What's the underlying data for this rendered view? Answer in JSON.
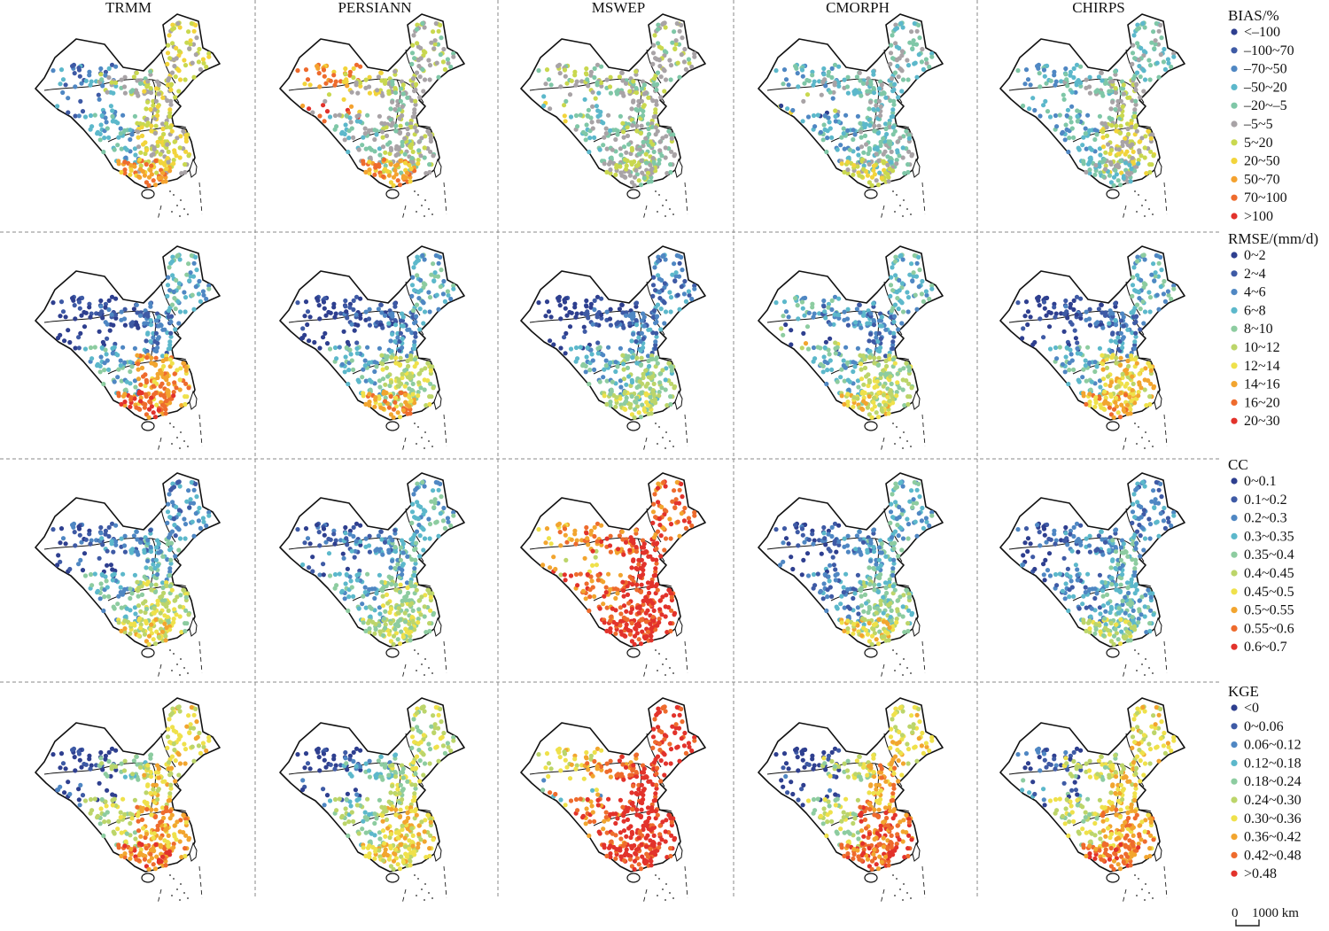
{
  "columns": [
    {
      "name": "TRMM"
    },
    {
      "name": "PERSIANN"
    },
    {
      "name": "MSWEP"
    },
    {
      "name": "CMORPH"
    },
    {
      "name": "CHIRPS"
    }
  ],
  "metrics": [
    {
      "key": "bias",
      "title": "BIAS/%",
      "classes": [
        {
          "label": "<–100",
          "color": "#2e3f8f"
        },
        {
          "label": "–100~70",
          "color": "#3e5aa5"
        },
        {
          "label": "–70~50",
          "color": "#4f87c3"
        },
        {
          "label": "–50~20",
          "color": "#5cb8cb"
        },
        {
          "label": "–20~–5",
          "color": "#7fc7a7"
        },
        {
          "label": "–5~5",
          "color": "#a8a3a6"
        },
        {
          "label": "5~20",
          "color": "#c9d84f"
        },
        {
          "label": "20~50",
          "color": "#f2d43b"
        },
        {
          "label": "50~70",
          "color": "#f4a22f"
        },
        {
          "label": "70~100",
          "color": "#ee6b2d"
        },
        {
          "label": ">100",
          "color": "#e2322b"
        }
      ],
      "patterns": {
        "TRMM": [
          2,
          0.3,
          5,
          6,
          6,
          3,
          6,
          8
        ],
        "PERSIANN": [
          8,
          1.2,
          6,
          5,
          5,
          4,
          5,
          8
        ],
        "MSWEP": [
          5,
          0.7,
          5,
          5,
          5,
          4,
          5,
          5
        ],
        "CMORPH": [
          3,
          1.3,
          4,
          4,
          4,
          3,
          4,
          6
        ],
        "CHIRPS": [
          3,
          0.3,
          4,
          5,
          4,
          3,
          6,
          4
        ]
      }
    },
    {
      "key": "rmse",
      "title": "RMSE/(mm/d)",
      "classes": [
        {
          "label": "0~2",
          "color": "#2e3f8f"
        },
        {
          "label": "2~4",
          "color": "#3e5aa5"
        },
        {
          "label": "4~6",
          "color": "#4f87c3"
        },
        {
          "label": "6~8",
          "color": "#5cb8cb"
        },
        {
          "label": "8~10",
          "color": "#8dcca0"
        },
        {
          "label": "10~12",
          "color": "#bcd56a"
        },
        {
          "label": "12~14",
          "color": "#efe14b"
        },
        {
          "label": "14~16",
          "color": "#f2a52f"
        },
        {
          "label": "16~20",
          "color": "#ee6b2d"
        },
        {
          "label": "20~30",
          "color": "#e2322b"
        }
      ],
      "patterns": {
        "TRMM": [
          0,
          0,
          1,
          2,
          3,
          3,
          7,
          8
        ],
        "PERSIANN": [
          0,
          0,
          1,
          2,
          3,
          3,
          5,
          7
        ],
        "MSWEP": [
          0,
          0,
          1,
          2,
          2,
          3,
          4,
          5
        ],
        "CMORPH": [
          3,
          1.8,
          2,
          2,
          3,
          3,
          5,
          6
        ],
        "CHIRPS": [
          0,
          0,
          1,
          2,
          3,
          3,
          6,
          7
        ]
      }
    },
    {
      "key": "cc",
      "title": "CC",
      "classes": [
        {
          "label": "0~0.1",
          "color": "#2e3f8f"
        },
        {
          "label": "0.1~0.2",
          "color": "#3e5aa5"
        },
        {
          "label": "0.2~0.3",
          "color": "#4f87c3"
        },
        {
          "label": "0.3~0.35",
          "color": "#5cb8cb"
        },
        {
          "label": "0.35~0.4",
          "color": "#8dcca0"
        },
        {
          "label": "0.4~0.45",
          "color": "#bcd56a"
        },
        {
          "label": "0.45~0.5",
          "color": "#efe14b"
        },
        {
          "label": "0.5~0.55",
          "color": "#f2a52f"
        },
        {
          "label": "0.55~0.6",
          "color": "#ee6b2d"
        },
        {
          "label": "0.6~0.7",
          "color": "#e2322b"
        }
      ],
      "patterns": {
        "TRMM": [
          1,
          0.6,
          2,
          3,
          2,
          3,
          5,
          6
        ],
        "PERSIANN": [
          1,
          0.4,
          2,
          3,
          3,
          3,
          5,
          5
        ],
        "MSWEP": [
          7,
          1,
          8,
          9,
          8,
          8,
          9,
          9
        ],
        "CMORPH": [
          1,
          0.5,
          2,
          3,
          3,
          2,
          4,
          6
        ],
        "CHIRPS": [
          1,
          0.5,
          2,
          3,
          2,
          2,
          3,
          5
        ]
      }
    },
    {
      "key": "kge",
      "title": "KGE",
      "classes": [
        {
          "label": "<0",
          "color": "#2e3f8f"
        },
        {
          "label": "0~0.06",
          "color": "#3e5aa5"
        },
        {
          "label": "0.06~0.12",
          "color": "#4f87c3"
        },
        {
          "label": "0.12~0.18",
          "color": "#5cb8cb"
        },
        {
          "label": "0.18~0.24",
          "color": "#8dcca0"
        },
        {
          "label": "0.24~0.30",
          "color": "#bcd56a"
        },
        {
          "label": "0.30~0.36",
          "color": "#efe14b"
        },
        {
          "label": "0.36~0.42",
          "color": "#f2a52f"
        },
        {
          "label": "0.42~0.48",
          "color": "#ee6b2d"
        },
        {
          "label": ">0.48",
          "color": "#e2322b"
        }
      ],
      "patterns": {
        "TRMM": [
          0,
          0.8,
          4,
          6,
          6,
          5,
          7,
          8
        ],
        "PERSIANN": [
          0,
          0.6,
          3,
          5,
          5,
          4,
          6,
          6
        ],
        "MSWEP": [
          6,
          1.6,
          8,
          9,
          9,
          8,
          9,
          9
        ],
        "CMORPH": [
          0,
          0.9,
          5,
          7,
          6,
          5,
          8,
          8
        ],
        "CHIRPS": [
          1,
          1.3,
          5,
          6,
          6,
          5,
          7,
          8
        ]
      }
    }
  ],
  "scale_bar": {
    "label_start": "0",
    "label_end": "1000 km"
  }
}
